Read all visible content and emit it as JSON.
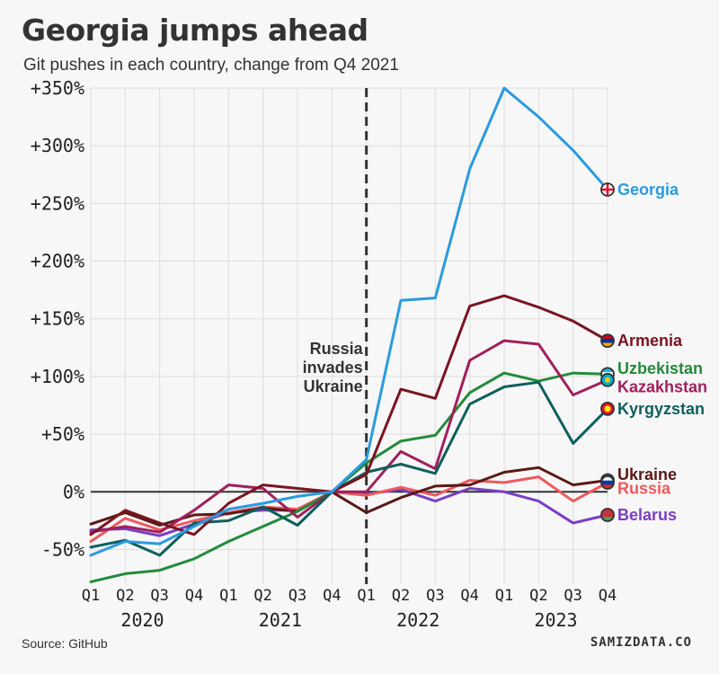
{
  "title": "Georgia jumps ahead",
  "subtitle": "Git pushes in each country, change from Q4 2021",
  "source": "Source: GitHub",
  "brand": "SAMIZDATA.CO",
  "chart_data": {
    "type": "line",
    "quarters": [
      "Q1",
      "Q2",
      "Q3",
      "Q4",
      "Q1",
      "Q2",
      "Q3",
      "Q4",
      "Q1",
      "Q2",
      "Q3",
      "Q4",
      "Q1",
      "Q2",
      "Q3",
      "Q4"
    ],
    "years": [
      {
        "label": "2020",
        "start": 0,
        "end": 3
      },
      {
        "label": "2021",
        "start": 4,
        "end": 7
      },
      {
        "label": "2022",
        "start": 8,
        "end": 11
      },
      {
        "label": "2023",
        "start": 12,
        "end": 15
      }
    ],
    "y_ticks": [
      {
        "value": 350,
        "label": "+350%"
      },
      {
        "value": 300,
        "label": "+300%"
      },
      {
        "value": 250,
        "label": "+250%"
      },
      {
        "value": 200,
        "label": "+200%"
      },
      {
        "value": 150,
        "label": "+150%"
      },
      {
        "value": 100,
        "label": "+100%"
      },
      {
        "value": 50,
        "label": "+50%"
      },
      {
        "value": 0,
        "label": "0%"
      },
      {
        "value": -50,
        "label": "-50%"
      }
    ],
    "ylim": [
      -80,
      350
    ],
    "grid": true,
    "event": {
      "index": 8,
      "label": [
        "Russia",
        "invades",
        "Ukraine"
      ]
    },
    "series": [
      {
        "name": "Belarus",
        "color": "#7a3fc4",
        "values": [
          -33,
          -32,
          -38,
          -28,
          -18,
          -16,
          -16,
          0,
          -2,
          2,
          -8,
          3,
          0,
          -8,
          -27,
          -20
        ]
      },
      {
        "name": "Russia",
        "color": "#ee5a5e",
        "values": [
          -43,
          -23,
          -33,
          -25,
          -18,
          -13,
          -15,
          0,
          -3,
          4,
          -3,
          10,
          8,
          13,
          -8,
          8
        ]
      },
      {
        "name": "Ukraine",
        "color": "#5a1a14",
        "values": [
          -28,
          -18,
          -29,
          -20,
          -19,
          -14,
          -17,
          0,
          -18,
          -5,
          5,
          6,
          17,
          21,
          6,
          10
        ]
      },
      {
        "name": "Uzbekistan",
        "color": "#238b3a",
        "values": [
          -78,
          -71,
          -68,
          -58,
          -43,
          -30,
          -17,
          0,
          25,
          44,
          49,
          86,
          103,
          96,
          103,
          102
        ]
      },
      {
        "name": "Kazakhstan",
        "color": "#a0205c",
        "values": [
          -35,
          -30,
          -35,
          -16,
          6,
          3,
          -22,
          0,
          0,
          35,
          20,
          114,
          131,
          128,
          84,
          97
        ]
      },
      {
        "name": "Kyrgyzstan",
        "color": "#0e5f5d",
        "values": [
          -48,
          -42,
          -55,
          -27,
          -25,
          -13,
          -29,
          0,
          17,
          24,
          16,
          76,
          91,
          95,
          42,
          72
        ]
      },
      {
        "name": "Armenia",
        "color": "#7a1420",
        "values": [
          -37,
          -16,
          -27,
          -37,
          -10,
          6,
          3,
          0,
          15,
          89,
          81,
          161,
          170,
          160,
          148,
          131
        ]
      },
      {
        "name": "Georgia",
        "color": "#2a9be0",
        "values": [
          -55,
          -43,
          -45,
          -30,
          -15,
          -10,
          -4,
          0,
          28,
          166,
          168,
          280,
          350,
          325,
          296,
          262
        ]
      }
    ],
    "end_labels": [
      {
        "name": "Georgia",
        "color": "#2a9be0",
        "value": 262,
        "label_value": 262,
        "flag": "ge"
      },
      {
        "name": "Armenia",
        "color": "#7a1420",
        "value": 131,
        "label_value": 131,
        "flag": "am"
      },
      {
        "name": "Uzbekistan",
        "color": "#238b3a",
        "value": 102,
        "label_value": 107,
        "flag": "uz"
      },
      {
        "name": "Kazakhstan",
        "color": "#a0205c",
        "value": 97,
        "label_value": 91,
        "flag": "kz"
      },
      {
        "name": "Kyrgyzstan",
        "color": "#0e5f5d",
        "value": 72,
        "label_value": 72,
        "flag": "kg"
      },
      {
        "name": "Ukraine",
        "color": "#5a1a14",
        "value": 10,
        "label_value": 15,
        "flag": "ua"
      },
      {
        "name": "Russia",
        "color": "#ee5a5e",
        "value": 8,
        "label_value": 3,
        "flag": "ru"
      },
      {
        "name": "Belarus",
        "color": "#7a3fc4",
        "value": -20,
        "label_value": -20,
        "flag": "by"
      }
    ]
  }
}
